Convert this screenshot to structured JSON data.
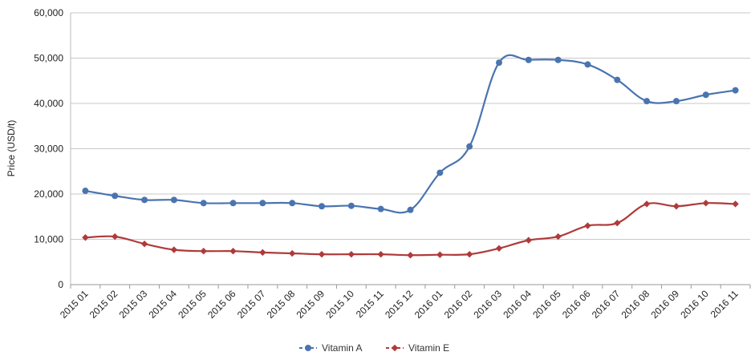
{
  "chart_data": {
    "type": "line",
    "title": "",
    "xlabel": "",
    "ylabel": "Price (USD/t)",
    "ylim": [
      0,
      60000
    ],
    "yticks": [
      0,
      10000,
      20000,
      30000,
      40000,
      50000,
      60000
    ],
    "ytick_labels": [
      "0",
      "10,000",
      "20,000",
      "30,000",
      "40,000",
      "50,000",
      "60,000"
    ],
    "grid": true,
    "legend_position": "bottom",
    "categories": [
      "2015 01",
      "2015 02",
      "2015 03",
      "2015 04",
      "2015 05",
      "2015 06",
      "2015 07",
      "2015 08",
      "2015 09",
      "2015 10",
      "2015 11",
      "2015 12",
      "2016 01",
      "2016 02",
      "2016 03",
      "2016 04",
      "2016 05",
      "2016 06",
      "2016 07",
      "2016 08",
      "2016 09",
      "2016 10",
      "2016 11"
    ],
    "series": [
      {
        "name": "Vitamin A",
        "color": "#4a74b0",
        "marker": "circle",
        "values": [
          20700,
          19600,
          18700,
          18700,
          18000,
          18000,
          18000,
          18000,
          17300,
          17400,
          16700,
          16500,
          24700,
          30500,
          49000,
          49600,
          49600,
          48600,
          45200,
          40500,
          40500,
          41900,
          42900
        ]
      },
      {
        "name": "Vitamin E",
        "color": "#b03a3a",
        "marker": "diamond",
        "values": [
          10400,
          10600,
          9000,
          7700,
          7400,
          7400,
          7100,
          6900,
          6700,
          6700,
          6700,
          6500,
          6600,
          6700,
          8000,
          9800,
          10600,
          13000,
          13600,
          17800,
          17300,
          18000,
          17800
        ]
      }
    ]
  }
}
